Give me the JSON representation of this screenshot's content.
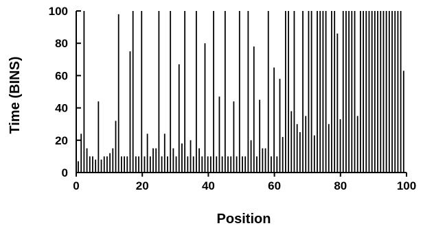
{
  "chart_data": {
    "type": "bar",
    "title": "",
    "xlabel": "Position",
    "ylabel": "Time (BINS)",
    "xlim": [
      0,
      100
    ],
    "ylim": [
      0,
      100
    ],
    "x_ticks": [
      0,
      20,
      40,
      60,
      80,
      100
    ],
    "y_ticks": [
      0,
      20,
      40,
      60,
      80,
      100
    ],
    "grid": false,
    "series": [
      {
        "values": [
          7,
          24,
          100,
          15,
          10,
          10,
          8,
          44,
          8,
          10,
          10,
          12,
          15,
          32,
          98,
          10,
          10,
          10,
          75,
          100,
          10,
          10,
          100,
          10,
          24,
          10,
          15,
          15,
          100,
          10,
          24,
          10,
          100,
          15,
          10,
          67,
          18,
          100,
          10,
          20,
          10,
          100,
          15,
          10,
          80,
          10,
          10,
          100,
          10,
          47,
          10,
          100,
          10,
          10,
          44,
          10,
          100,
          10,
          10,
          100,
          20,
          78,
          10,
          45,
          15,
          15,
          100,
          10,
          65,
          10,
          58,
          22,
          100,
          100,
          38,
          100,
          30,
          25,
          100,
          35,
          100,
          100,
          23,
          100,
          100,
          100,
          100,
          30,
          100,
          100,
          86,
          33,
          100,
          100,
          100,
          100,
          100,
          35,
          100,
          100,
          100,
          100,
          100,
          100,
          100,
          100,
          100,
          100,
          100,
          100,
          100,
          100,
          100,
          63
        ]
      }
    ]
  }
}
